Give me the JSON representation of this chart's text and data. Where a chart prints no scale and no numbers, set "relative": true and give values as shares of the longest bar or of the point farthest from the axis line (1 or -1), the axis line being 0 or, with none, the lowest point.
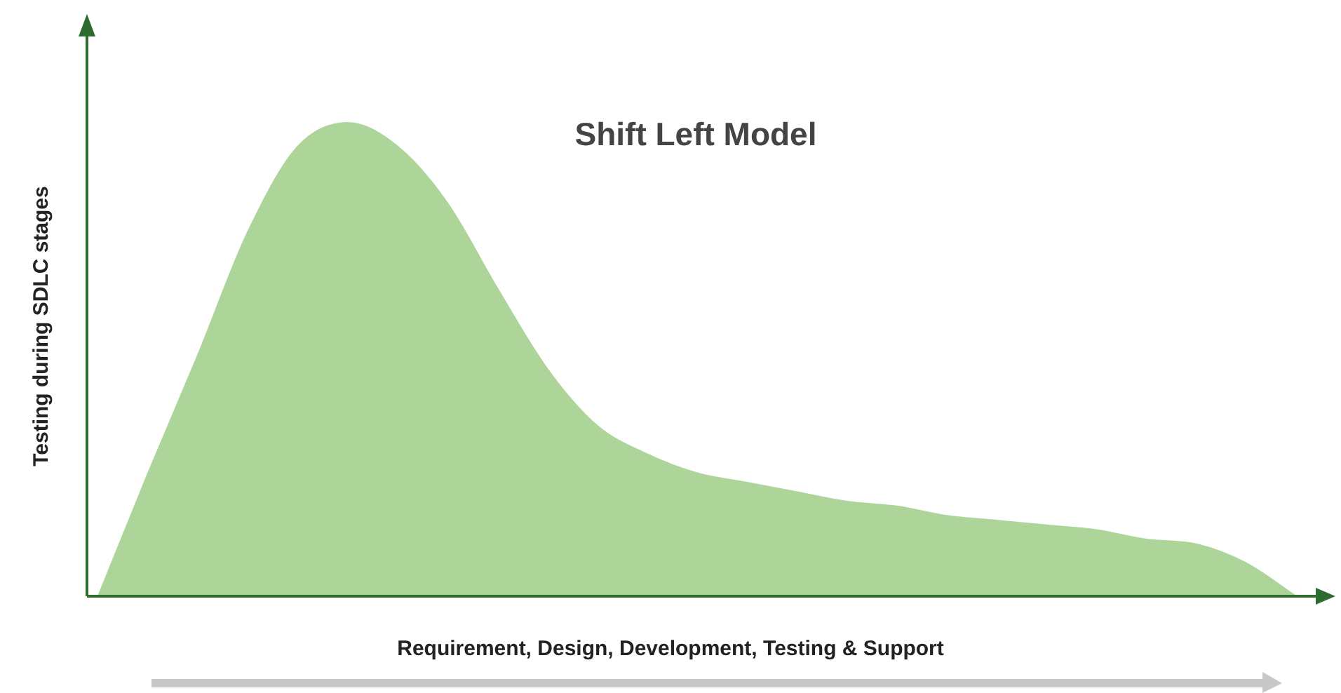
{
  "chart_data": {
    "type": "area",
    "title": "Shift Left Model",
    "xlabel": "Requirement, Design, Development, Testing & Support",
    "ylabel": "Testing during SDLC stages",
    "relative": true,
    "legend": false,
    "marker": "none",
    "categories": [
      null,
      null,
      null,
      null,
      null,
      null,
      null,
      null,
      null,
      null,
      null,
      null,
      null,
      null,
      null,
      null,
      null,
      null,
      null,
      null,
      null,
      null,
      null,
      null,
      null
    ],
    "series": [
      {
        "color": "#add59a",
        "values": [
          0,
          0.26,
          0.51,
          0.77,
          0.95,
          1,
          0.95,
          0.83,
          0.65,
          0.48,
          0.36,
          0.3,
          0.26,
          0.24,
          0.22,
          0.2,
          0.19,
          0.17,
          0.16,
          0.15,
          0.14,
          0.12,
          0.11,
          0.07,
          0
        ]
      }
    ]
  }
}
